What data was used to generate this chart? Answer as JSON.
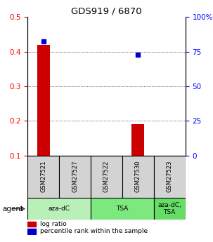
{
  "title": "GDS919 / 6870",
  "samples": [
    "GSM27521",
    "GSM27527",
    "GSM27522",
    "GSM27530",
    "GSM27523"
  ],
  "log_ratios": [
    0.42,
    0.0,
    0.0,
    0.19,
    0.0
  ],
  "percentile_ranks_pct": [
    82.5,
    0.0,
    0.0,
    72.5,
    0.0
  ],
  "bar_color": "#cc0000",
  "dot_color": "#0000cc",
  "ylim": [
    0.1,
    0.5
  ],
  "yticks_left": [
    0.1,
    0.2,
    0.3,
    0.4,
    0.5
  ],
  "yticks_right": [
    0,
    25,
    50,
    75,
    100
  ],
  "agent_groups": [
    {
      "label": "aza-dC",
      "cols": [
        0,
        1
      ],
      "color": "#b8f0b8"
    },
    {
      "label": "TSA",
      "cols": [
        2,
        3
      ],
      "color": "#7de87d"
    },
    {
      "label": "aza-dC,\nTSA",
      "cols": [
        4
      ],
      "color": "#66dd66"
    }
  ],
  "legend_bar_label": "log ratio",
  "legend_dot_label": "percentile rank within the sample",
  "agent_label": "agent",
  "xlim": [
    -0.5,
    4.5
  ],
  "bar_width": 0.4
}
